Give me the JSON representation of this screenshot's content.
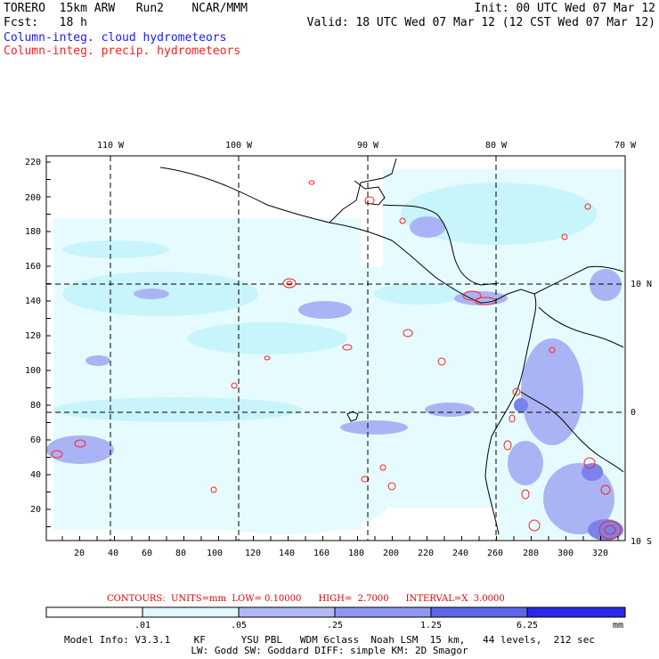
{
  "header": {
    "left_line1": "TORERO  15km ARW   Run2    NCAR/MMM",
    "left_line2": "Fcst:   18 h",
    "right_line1": "Init: 00 UTC Wed 07 Mar 12",
    "right_line2": "Valid: 18 UTC Wed 07 Mar 12 (12 CST Wed 07 Mar 12)",
    "legend_cloud": "Column-integ. cloud hydrometeors",
    "legend_precip": "Column-integ. precip. hydrometeors"
  },
  "map": {
    "top_labels": [
      "110 W",
      "100 W",
      "90 W",
      "80 W",
      "70 W"
    ],
    "left_labels": [
      "220",
      "200",
      "180",
      "160",
      "140",
      "120",
      "100",
      "80",
      "60",
      "40",
      "20"
    ],
    "bottom_labels": [
      "20",
      "40",
      "60",
      "80",
      "100",
      "120",
      "140",
      "160",
      "180",
      "200",
      "220",
      "240",
      "260",
      "280",
      "300",
      "320"
    ],
    "right_labels": [
      "10 N",
      "0",
      "10 S"
    ],
    "colors": {
      "light": "#e6fbff",
      "light2": "#c8f4fb",
      "medium": "#aab4f4",
      "strong": "#7a82ee",
      "precip": "#ff2020",
      "gridline": "#000000"
    }
  },
  "contours": {
    "label": "CONTOURS:  UNITS=mm  LOW= 0.10000      HIGH=  2.7000      INTERVAL=X  3.0000"
  },
  "colorbar": {
    "labels": [
      ".01",
      ".05",
      ".25",
      "1.25",
      "6.25"
    ],
    "unit": "mm",
    "colors": [
      "#ffffff",
      "#dff8fc",
      "#c2eef6",
      "#b2b8f4",
      "#8f96f0",
      "#5e66ec",
      "#2828ea"
    ]
  },
  "model_info": {
    "line1": "Model Info: V3.3.1    KF      YSU PBL   WDM 6class  Noah LSM  15 km,   44 levels,  212 sec",
    "line2": "LW: Godd SW: Goddard DIFF: simple KM: 2D Smagor"
  }
}
